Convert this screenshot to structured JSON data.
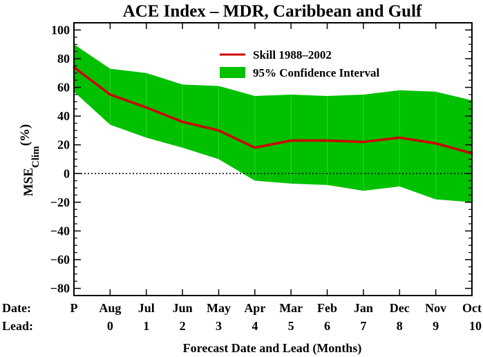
{
  "chart_data": {
    "type": "area",
    "title": "ACE Index – MDR, Caribbean and Gulf",
    "xlabel": "Forecast Date and Lead (Months)",
    "ylabel_main": "MSE",
    "ylabel_sub": "Clim",
    "ylabel_unit": "(%)",
    "row_labels": {
      "date": "Date:",
      "lead": "Lead:"
    },
    "categories": [
      "P",
      "Aug",
      "Jul",
      "Jun",
      "May",
      "Apr",
      "Mar",
      "Feb",
      "Jan",
      "Dec",
      "Nov",
      "Oct"
    ],
    "leads": [
      "",
      "0",
      "1",
      "2",
      "3",
      "4",
      "5",
      "6",
      "7",
      "8",
      "9",
      "10"
    ],
    "ylim": [
      -85,
      105
    ],
    "yticks": [
      -80,
      -60,
      -40,
      -20,
      0,
      20,
      40,
      60,
      80,
      100
    ],
    "zero_line": true,
    "legend_position": "top-right",
    "series": [
      {
        "name": "Skill 1988–2002",
        "kind": "line",
        "color": "#cc0000",
        "values": [
          74,
          55,
          46,
          36,
          30,
          18,
          23,
          23,
          22,
          25,
          21,
          14
        ]
      },
      {
        "name": "95% Confidence Interval",
        "kind": "band",
        "color": "#00c000",
        "upper": [
          90,
          73,
          70,
          62,
          61,
          54,
          55,
          54,
          55,
          58,
          57,
          51
        ],
        "lower": [
          57,
          34,
          25,
          18,
          10,
          -5,
          -7,
          -8,
          -12,
          -9,
          -18,
          -20
        ]
      }
    ]
  }
}
